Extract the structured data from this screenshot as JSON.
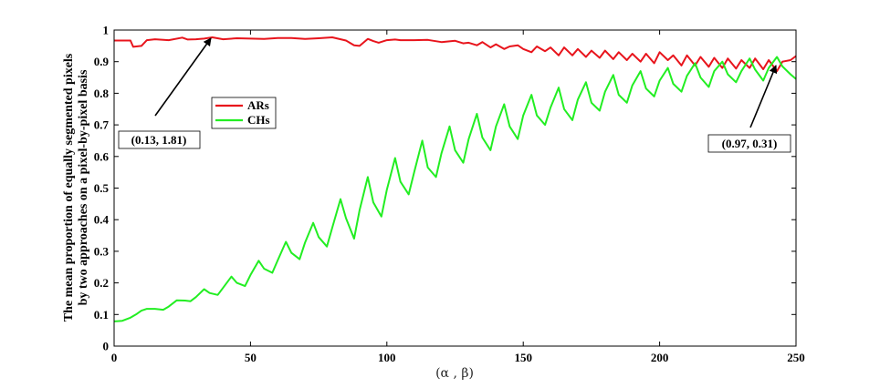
{
  "chart_data": {
    "type": "line",
    "title": "",
    "xlabel": "(α , β)",
    "ylabel_line1": "The mean proportion of equally segmented pixels",
    "ylabel_line2": "by two approaches on a pixel-by-pixel basis",
    "xlim": [
      0,
      250
    ],
    "ylim": [
      0,
      1
    ],
    "xticks": [
      "0",
      "50",
      "100",
      "150",
      "200",
      "250"
    ],
    "yticks": [
      "0",
      "0.1",
      "0.2",
      "0.3",
      "0.4",
      "0.5",
      "0.6",
      "0.7",
      "0.8",
      "0.9",
      "1"
    ],
    "grid": false,
    "legend_position": "upper-left",
    "series": [
      {
        "name": "ARs",
        "color": "#e8141c",
        "x": [
          0,
          6,
          7,
          10,
          12,
          15,
          20,
          25,
          27,
          30,
          33,
          36,
          40,
          45,
          50,
          55,
          60,
          65,
          70,
          75,
          80,
          85,
          88,
          90,
          93,
          95,
          97,
          100,
          103,
          105,
          110,
          115,
          120,
          125,
          128,
          130,
          133,
          135,
          138,
          140,
          143,
          145,
          148,
          150,
          153,
          155,
          158,
          160,
          163,
          165,
          168,
          170,
          173,
          175,
          178,
          180,
          183,
          185,
          188,
          190,
          193,
          195,
          198,
          200,
          203,
          205,
          208,
          210,
          213,
          215,
          218,
          220,
          223,
          225,
          228,
          230,
          233,
          235,
          238,
          240,
          243,
          245,
          248,
          250
        ],
        "y": [
          0.967,
          0.967,
          0.947,
          0.95,
          0.968,
          0.971,
          0.968,
          0.976,
          0.97,
          0.971,
          0.973,
          0.977,
          0.971,
          0.974,
          0.973,
          0.972,
          0.975,
          0.975,
          0.972,
          0.974,
          0.977,
          0.967,
          0.952,
          0.95,
          0.972,
          0.965,
          0.96,
          0.968,
          0.97,
          0.968,
          0.968,
          0.969,
          0.962,
          0.966,
          0.958,
          0.96,
          0.952,
          0.962,
          0.945,
          0.955,
          0.94,
          0.948,
          0.952,
          0.94,
          0.93,
          0.948,
          0.933,
          0.945,
          0.92,
          0.945,
          0.92,
          0.94,
          0.915,
          0.935,
          0.912,
          0.935,
          0.908,
          0.93,
          0.905,
          0.925,
          0.9,
          0.925,
          0.895,
          0.93,
          0.905,
          0.92,
          0.888,
          0.92,
          0.888,
          0.915,
          0.884,
          0.912,
          0.88,
          0.91,
          0.878,
          0.905,
          0.88,
          0.91,
          0.876,
          0.905,
          0.87,
          0.9,
          0.905,
          0.918
        ]
      },
      {
        "name": "CHs",
        "color": "#22ee22",
        "x": [
          0,
          3,
          6,
          8,
          10,
          12,
          15,
          18,
          20,
          23,
          26,
          28,
          30,
          33,
          35,
          38,
          40,
          43,
          45,
          48,
          50,
          53,
          55,
          58,
          60,
          63,
          65,
          68,
          70,
          73,
          75,
          78,
          80,
          83,
          85,
          88,
          90,
          93,
          95,
          98,
          100,
          103,
          105,
          108,
          110,
          113,
          115,
          118,
          120,
          123,
          125,
          128,
          130,
          133,
          135,
          138,
          140,
          143,
          145,
          148,
          150,
          153,
          155,
          158,
          160,
          163,
          165,
          168,
          170,
          173,
          175,
          178,
          180,
          183,
          185,
          188,
          190,
          193,
          195,
          198,
          200,
          203,
          205,
          208,
          210,
          213,
          215,
          218,
          220,
          223,
          225,
          228,
          230,
          233,
          235,
          238,
          240,
          243,
          245,
          248,
          250
        ],
        "y": [
          0.078,
          0.08,
          0.09,
          0.1,
          0.112,
          0.118,
          0.118,
          0.115,
          0.125,
          0.145,
          0.144,
          0.142,
          0.155,
          0.18,
          0.168,
          0.162,
          0.185,
          0.22,
          0.2,
          0.19,
          0.225,
          0.27,
          0.245,
          0.232,
          0.272,
          0.33,
          0.295,
          0.275,
          0.328,
          0.39,
          0.345,
          0.315,
          0.375,
          0.465,
          0.405,
          0.34,
          0.43,
          0.535,
          0.455,
          0.41,
          0.495,
          0.595,
          0.52,
          0.48,
          0.55,
          0.65,
          0.565,
          0.535,
          0.61,
          0.695,
          0.62,
          0.58,
          0.655,
          0.735,
          0.66,
          0.62,
          0.695,
          0.765,
          0.695,
          0.655,
          0.73,
          0.795,
          0.73,
          0.7,
          0.755,
          0.818,
          0.75,
          0.715,
          0.78,
          0.835,
          0.77,
          0.745,
          0.805,
          0.858,
          0.795,
          0.77,
          0.825,
          0.87,
          0.815,
          0.79,
          0.84,
          0.88,
          0.83,
          0.805,
          0.855,
          0.895,
          0.85,
          0.82,
          0.87,
          0.9,
          0.86,
          0.835,
          0.87,
          0.91,
          0.875,
          0.84,
          0.88,
          0.915,
          0.885,
          0.86,
          0.845
        ]
      }
    ],
    "annotations": [
      {
        "label": "(0.13, 1.81)",
        "point": [
          35,
          0.975
        ]
      },
      {
        "label": "(0.97, 0.31)",
        "point": [
          243,
          0.88
        ]
      }
    ]
  }
}
